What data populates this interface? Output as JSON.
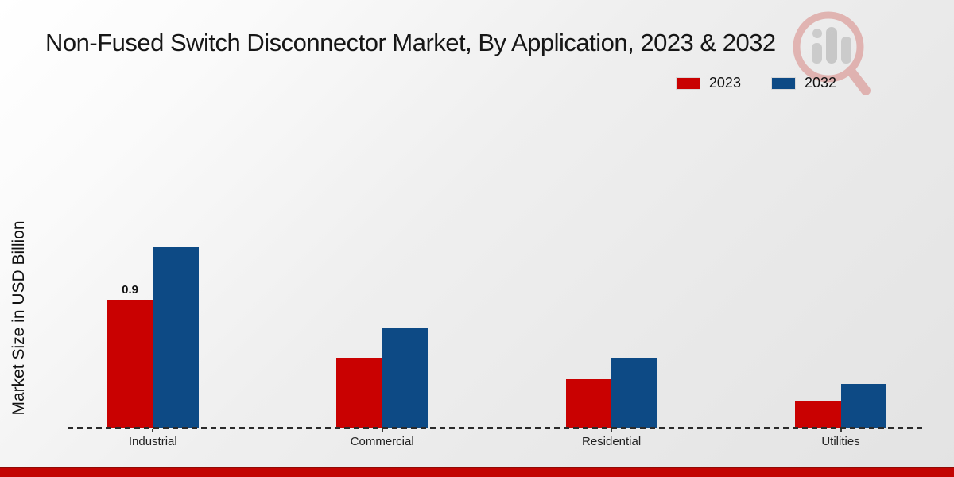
{
  "page": {
    "title": "Non-Fused Switch Disconnector Market, By Application, 2023 & 2032",
    "y_axis_label": "Market Size in USD Billion",
    "footer_color": "#c30402",
    "watermark_icon": "magnifier-bar-chart-logo"
  },
  "legend": {
    "position": "top-right",
    "items": [
      {
        "label": "2023",
        "color": "#c90101"
      },
      {
        "label": "2032",
        "color": "#0d4a85"
      }
    ]
  },
  "chart_data": {
    "type": "bar",
    "title": "Non-Fused Switch Disconnector Market, By Application, 2023 & 2032",
    "categories": [
      "Industrial",
      "Commercial",
      "Residential",
      "Utilities"
    ],
    "series": [
      {
        "name": "2023",
        "color": "#c90101",
        "values": [
          0.9,
          0.49,
          0.34,
          0.19
        ]
      },
      {
        "name": "2032",
        "color": "#0d4a85",
        "values": [
          1.27,
          0.7,
          0.49,
          0.31
        ]
      }
    ],
    "bar_labels": [
      [
        "0.9",
        null,
        null,
        null
      ],
      [
        null,
        null,
        null,
        null
      ]
    ],
    "xlabel": "",
    "ylabel": "Market Size in USD Billion",
    "ylim": [
      0,
      1.4
    ],
    "y_axis_ticks_visible": false,
    "grid": false,
    "baseline_style": "dashed",
    "legend_position": "top-right"
  }
}
